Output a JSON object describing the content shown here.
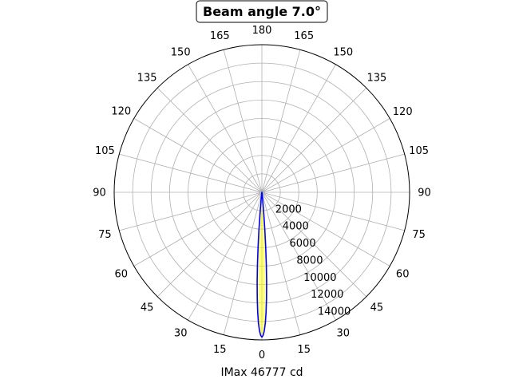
{
  "chart_data": {
    "type": "polar-line",
    "title": "Beam angle 7.0°",
    "xlabel": "IMax 46777 cd",
    "angle_tick_labels": [
      "0",
      "15",
      "30",
      "45",
      "60",
      "75",
      "90",
      "105",
      "120",
      "135",
      "150",
      "165",
      "180",
      "165",
      "150",
      "135",
      "120",
      "105",
      "90",
      "75",
      "60",
      "45",
      "30",
      "15"
    ],
    "radial_ticks": [
      2000,
      4000,
      6000,
      8000,
      10000,
      12000,
      14000
    ],
    "radial_tick_labels": [
      "2000",
      "4000",
      "6000",
      "8000",
      "10000",
      "12000",
      "14000"
    ],
    "rlim": [
      0,
      16000
    ],
    "grid": true,
    "series": [
      {
        "color": "#0000ff",
        "fill_color": "#ffff00",
        "points": [
          {
            "angle": 0,
            "value": 15700
          },
          {
            "angle": 0.5,
            "value": 15500
          },
          {
            "angle": 1,
            "value": 15000
          },
          {
            "angle": 1.5,
            "value": 14200
          },
          {
            "angle": 2,
            "value": 13000
          },
          {
            "angle": 2.5,
            "value": 11500
          },
          {
            "angle": 3,
            "value": 9800
          },
          {
            "angle": 3.5,
            "value": 7900
          },
          {
            "angle": 4,
            "value": 5900
          },
          {
            "angle": 4.5,
            "value": 4000
          },
          {
            "angle": 5,
            "value": 2400
          },
          {
            "angle": 6,
            "value": 800
          },
          {
            "angle": 8,
            "value": 200
          },
          {
            "angle": 12,
            "value": 0
          }
        ]
      }
    ]
  }
}
